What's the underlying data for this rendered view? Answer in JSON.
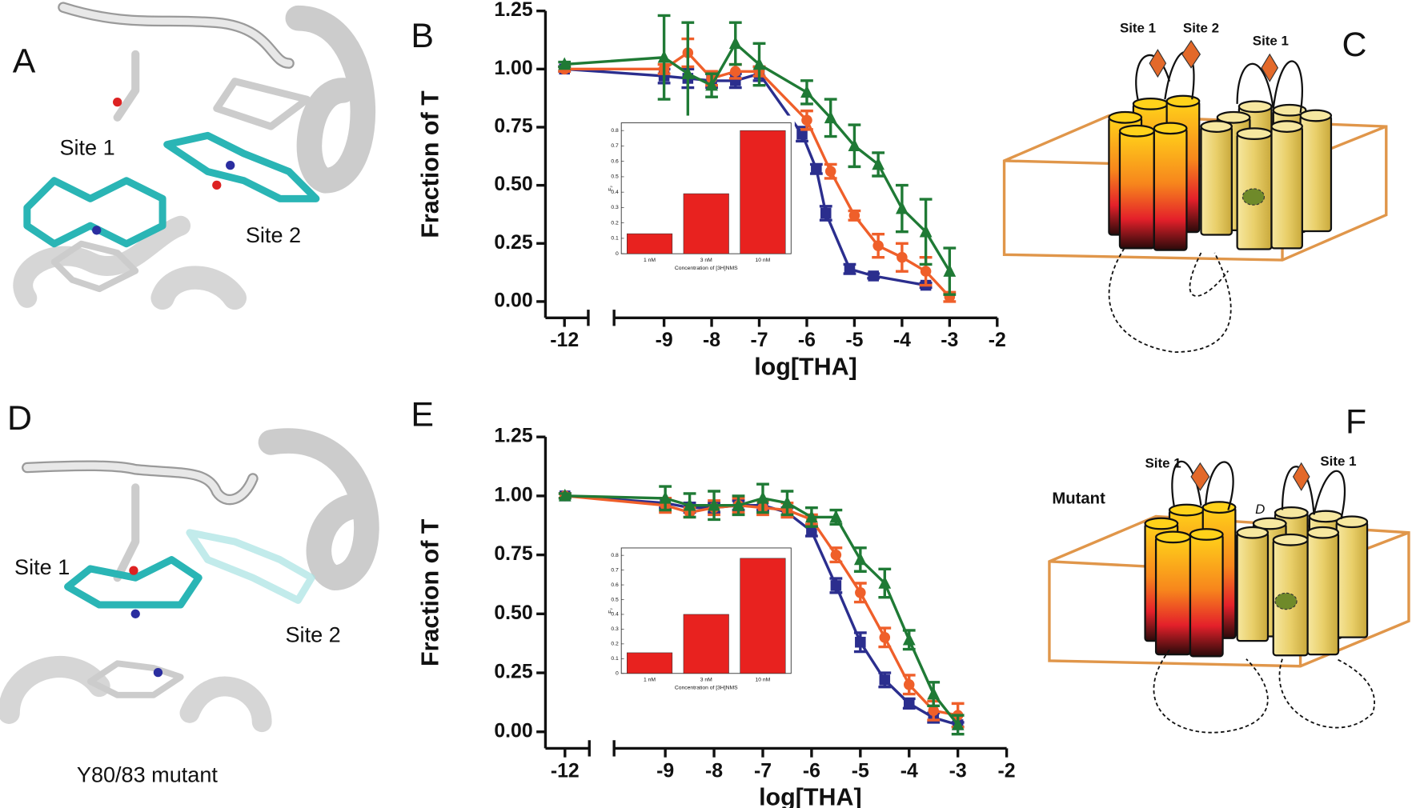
{
  "panels": {
    "a": "A",
    "b": "B",
    "c": "C",
    "d": "D",
    "e": "E",
    "f": "F"
  },
  "structure_labels": {
    "a_site1": "Site 1",
    "a_site2": "Site 2",
    "d_site1": "Site 1",
    "d_site2": "Site 2",
    "d_caption": "Y80/83 mutant"
  },
  "diagram_labels": {
    "c_site1_left": "Site 1",
    "c_site2": "Site 2",
    "c_site1_right": "Site 1",
    "f_site1_left": "Site 1",
    "f_site1_right": "Site 1",
    "f_mutant": "Mutant",
    "f_d": "D"
  },
  "chart_data": [
    {
      "type": "line",
      "xlabel": "log[THA]",
      "ylabel": "Fraction of T",
      "xlim": [
        -12.4,
        -2
      ],
      "xbreak": [
        -11.5,
        -10.05
      ],
      "xticks": [
        -12,
        -9,
        -8,
        -7,
        -6,
        -5,
        -4,
        -3,
        -2
      ],
      "ylim": [
        -0.07,
        1.25
      ],
      "yticks": [
        {
          "value": 0,
          "label": "0.00"
        },
        {
          "value": 0.25,
          "label": "0.25"
        },
        {
          "value": 0.5,
          "label": "0.50"
        },
        {
          "value": 0.75,
          "label": "0.75"
        },
        {
          "value": 1,
          "label": "1.00"
        },
        {
          "value": 1.25,
          "label": "1.25"
        }
      ],
      "series": [
        {
          "color": "#2b2e8e",
          "marker": "square",
          "x": [
            -12,
            -9,
            -8.5,
            -8,
            -7.5,
            -7,
            -6.1,
            -5.8,
            -5.6,
            -5.1,
            -4.6,
            -3.5
          ],
          "values": [
            1.0,
            0.97,
            0.96,
            0.95,
            0.95,
            0.98,
            0.72,
            0.57,
            0.38,
            0.14,
            0.11,
            0.07
          ],
          "errors": [
            0.01,
            0.03,
            0.04,
            0.03,
            0.03,
            0.03,
            0.03,
            0.02,
            0.03,
            0.02,
            0.01,
            0.01
          ]
        },
        {
          "color": "#ef5f2a",
          "marker": "circle",
          "x": [
            -12,
            -9,
            -8.5,
            -8,
            -7.5,
            -7,
            -6,
            -5.5,
            -5,
            -4.5,
            -4,
            -3.5,
            -3
          ],
          "values": [
            1.0,
            1.0,
            1.07,
            0.96,
            0.99,
            0.99,
            0.78,
            0.56,
            0.37,
            0.24,
            0.19,
            0.13,
            0.02
          ],
          "errors": [
            0.01,
            0.02,
            0.06,
            0.03,
            0.03,
            0.02,
            0.04,
            0.03,
            0.02,
            0.05,
            0.06,
            0.06,
            0.02
          ]
        },
        {
          "color": "#1f7a35",
          "marker": "triangle",
          "x": [
            -12,
            -9,
            -8.5,
            -8,
            -7.5,
            -7,
            -6,
            -5.5,
            -5,
            -4.5,
            -4,
            -3.5,
            -3
          ],
          "values": [
            1.02,
            1.05,
            0.98,
            0.93,
            1.11,
            1.02,
            0.9,
            0.79,
            0.67,
            0.59,
            0.4,
            0.3,
            0.13
          ],
          "errors": [
            0.01,
            0.18,
            0.22,
            0.05,
            0.09,
            0.09,
            0.05,
            0.08,
            0.09,
            0.05,
            0.1,
            0.14,
            0.1
          ]
        }
      ]
    },
    {
      "type": "bar",
      "xlabel": "Concentration of [3H]NMS",
      "ylabel": "F₂",
      "color": "#e8221f",
      "categories": [
        "1 nM",
        "3 nM",
        "10 nM"
      ],
      "values": [
        0.13,
        0.39,
        0.8
      ],
      "ylim": [
        0,
        0.85
      ],
      "yticks": [
        0,
        0.1,
        0.2,
        0.3,
        0.4,
        0.5,
        0.6,
        0.7,
        0.8
      ]
    },
    {
      "type": "line",
      "xlabel": "log[THA]",
      "ylabel": "Fraction of T",
      "xlim": [
        -12.4,
        -2
      ],
      "xbreak": [
        -11.5,
        -10.05
      ],
      "xticks": [
        -12,
        -9,
        -8,
        -7,
        -6,
        -5,
        -4,
        -3,
        -2
      ],
      "ylim": [
        -0.07,
        1.25
      ],
      "yticks": [
        {
          "value": 0,
          "label": "0.00"
        },
        {
          "value": 0.25,
          "label": "0.25"
        },
        {
          "value": 0.5,
          "label": "0.50"
        },
        {
          "value": 0.75,
          "label": "0.75"
        },
        {
          "value": 1,
          "label": "1.00"
        },
        {
          "value": 1.25,
          "label": "1.25"
        }
      ],
      "series": [
        {
          "color": "#2b2e8e",
          "marker": "square",
          "x": [
            -12,
            -9,
            -8.5,
            -8,
            -7.5,
            -7,
            -6.5,
            -6,
            -5.5,
            -5,
            -4.5,
            -4,
            -3.5,
            -3
          ],
          "values": [
            1.0,
            0.97,
            0.95,
            0.95,
            0.96,
            0.96,
            0.93,
            0.85,
            0.62,
            0.38,
            0.22,
            0.12,
            0.06,
            0.03
          ],
          "errors": [
            0.01,
            0.02,
            0.02,
            0.02,
            0.02,
            0.02,
            0.02,
            0.02,
            0.03,
            0.04,
            0.03,
            0.02,
            0.02,
            0.01
          ]
        },
        {
          "color": "#ef5f2a",
          "marker": "circle",
          "x": [
            -12,
            -9,
            -8.5,
            -8,
            -7.5,
            -7,
            -6.5,
            -6,
            -5.5,
            -5,
            -4.5,
            -4,
            -3.5,
            -3
          ],
          "values": [
            1.0,
            0.96,
            0.93,
            0.95,
            0.96,
            0.95,
            0.94,
            0.9,
            0.75,
            0.59,
            0.4,
            0.2,
            0.09,
            0.07
          ],
          "errors": [
            0.01,
            0.03,
            0.02,
            0.03,
            0.03,
            0.03,
            0.03,
            0.02,
            0.03,
            0.04,
            0.04,
            0.04,
            0.04,
            0.05
          ]
        },
        {
          "color": "#1f7a35",
          "marker": "triangle",
          "x": [
            -12,
            -9,
            -8.5,
            -8,
            -7.5,
            -7,
            -6.5,
            -6,
            -5.5,
            -5,
            -4.5,
            -4,
            -3.5,
            -3
          ],
          "values": [
            1.0,
            0.99,
            0.96,
            0.96,
            0.96,
            0.99,
            0.97,
            0.91,
            0.91,
            0.73,
            0.63,
            0.39,
            0.16,
            0.03
          ],
          "errors": [
            0.01,
            0.05,
            0.05,
            0.06,
            0.04,
            0.06,
            0.05,
            0.04,
            0.03,
            0.05,
            0.06,
            0.04,
            0.05,
            0.04
          ]
        }
      ]
    },
    {
      "type": "bar",
      "xlabel": "Concentration of [3H]NMS",
      "ylabel": "F₂",
      "color": "#e8221f",
      "categories": [
        "1 nM",
        "3 nM",
        "10 nM"
      ],
      "values": [
        0.14,
        0.4,
        0.78
      ],
      "ylim": [
        0,
        0.85
      ],
      "yticks": [
        0,
        0.1,
        0.2,
        0.3,
        0.4,
        0.5,
        0.6,
        0.7,
        0.8
      ]
    }
  ]
}
